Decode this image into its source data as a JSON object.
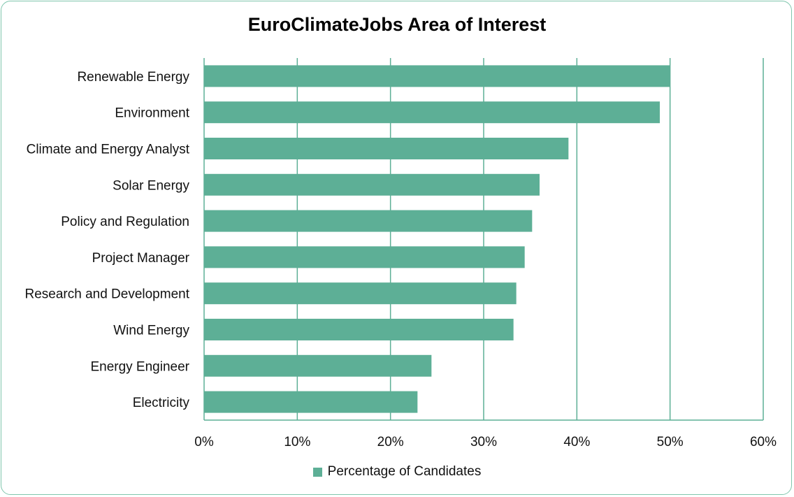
{
  "chart_data": {
    "type": "bar",
    "orientation": "horizontal",
    "title": "EuroClimateJobs Area of Interest",
    "categories": [
      "Renewable Energy",
      "Environment",
      "Climate and Energy Analyst",
      "Solar Energy",
      "Policy and Regulation",
      "Project Manager",
      "Research and Development",
      "Wind Energy",
      "Energy Engineer",
      "Electricity"
    ],
    "series": [
      {
        "name": "Percentage of Candidates",
        "values": [
          0.5,
          0.489,
          0.391,
          0.36,
          0.352,
          0.344,
          0.335,
          0.332,
          0.244,
          0.229
        ]
      }
    ],
    "xlabel": "",
    "ylabel": "",
    "xlim": [
      0,
      0.6
    ],
    "x_ticks": [
      "0%",
      "10%",
      "20%",
      "30%",
      "40%",
      "50%",
      "60%"
    ],
    "grid": true,
    "legend_position": "bottom",
    "colors": {
      "bar": "#5daf96",
      "grid": "#5daf96",
      "frame": "#7fc6ad"
    }
  }
}
